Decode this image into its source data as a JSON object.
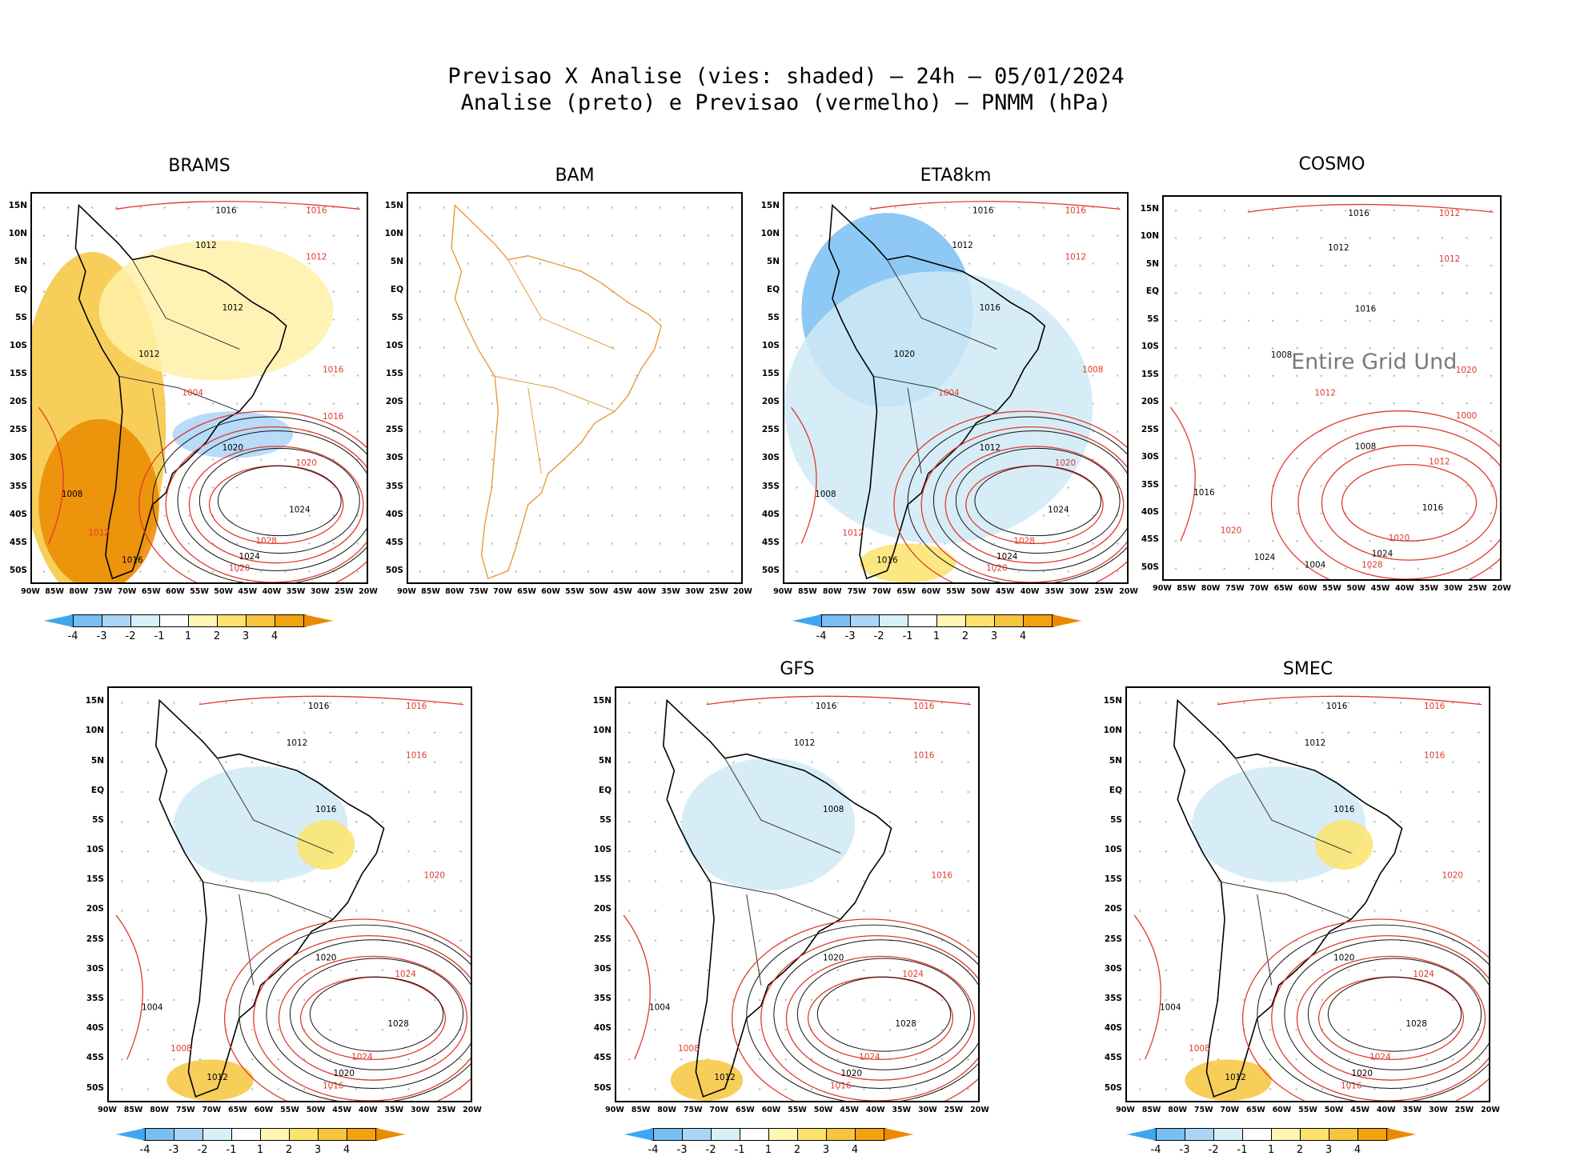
{
  "figure": {
    "title_line1": "Previsao X Analise (vies: shaded) – 24h – 05/01/2024",
    "title_line2": "Analise (preto) e Previsao (vermelho) – PNMM (hPa)"
  },
  "axes": {
    "y_labels": [
      "15N",
      "10N",
      "5N",
      "EQ",
      "5S",
      "10S",
      "15S",
      "20S",
      "25S",
      "30S",
      "35S",
      "40S",
      "45S",
      "50S"
    ],
    "x_labels": [
      "90W",
      "85W",
      "80W",
      "75W",
      "70W",
      "65W",
      "60W",
      "55W",
      "50W",
      "45W",
      "40W",
      "35W",
      "30W",
      "25W",
      "20W"
    ]
  },
  "colorbar": {
    "ticks": [
      "-4",
      "-3",
      "-2",
      "-1",
      "1",
      "2",
      "3",
      "4"
    ],
    "colors": [
      "#3fa6ef",
      "#79bff2",
      "#aad5f7",
      "#d7f0f8",
      "#ffffff",
      "#fff7b3",
      "#fde36b",
      "#f7c53d",
      "#f2a20e",
      "#eb8a00"
    ]
  },
  "panels": [
    {
      "name": "BRAMS",
      "title": "BRAMS",
      "bias": "warm",
      "labels": [
        "1016",
        "1016",
        "1012",
        "1012",
        "1012",
        "1016",
        "1020",
        "1020",
        "1024",
        "1028",
        "1024",
        "1020",
        "1016",
        "1012",
        "1008",
        "1004",
        "1012",
        "1016"
      ]
    },
    {
      "name": "BAM",
      "title": "BAM",
      "bias": "none",
      "labels": []
    },
    {
      "name": "ETA8km",
      "title": "ETA8km",
      "bias": "cold",
      "labels": [
        "1016",
        "1016",
        "1012",
        "1012",
        "1016",
        "1008",
        "1012",
        "1020",
        "1024",
        "1028",
        "1024",
        "1020",
        "1016",
        "1012",
        "1008",
        "1004",
        "1020"
      ]
    },
    {
      "name": "COSMO",
      "title": "COSMO",
      "bias": "none",
      "undefined_text": "Entire Grid Und",
      "labels": [
        "1016",
        "1012",
        "1012",
        "1012",
        "1016",
        "1020",
        "1008",
        "1012",
        "1016",
        "1020",
        "1024",
        "1028",
        "1024",
        "1020",
        "1016",
        "1012",
        "1008",
        "1000",
        "1004"
      ]
    },
    {
      "name": "panel5",
      "title": "",
      "bias": "mixed",
      "labels": [
        "1016",
        "1016",
        "1012",
        "1016",
        "1016",
        "1020",
        "1020",
        "1024",
        "1028",
        "1024",
        "1020",
        "1016",
        "1012",
        "1008",
        "1004"
      ]
    },
    {
      "name": "GFS",
      "title": "GFS",
      "bias": "cold-light",
      "labels": [
        "1016",
        "1016",
        "1012",
        "1016",
        "1008",
        "1016",
        "1020",
        "1024",
        "1028",
        "1024",
        "1020",
        "1016",
        "1012",
        "1008",
        "1004"
      ]
    },
    {
      "name": "SMEC",
      "title": "SMEC",
      "bias": "mixed",
      "labels": [
        "1016",
        "1016",
        "1012",
        "1016",
        "1016",
        "1020",
        "1020",
        "1024",
        "1028",
        "1024",
        "1020",
        "1016",
        "1012",
        "1008",
        "1004"
      ]
    }
  ]
}
